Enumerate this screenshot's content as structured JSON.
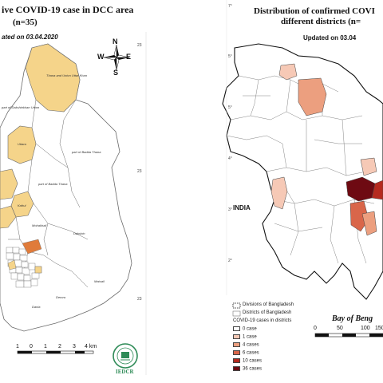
{
  "left_map": {
    "title": "ive COVID-19 case  in DCC area",
    "subtitle": "(n=35)",
    "updated": "ated on 03.04.2020",
    "compass": {
      "n": "N",
      "e": "E",
      "w": "W",
      "s": "S"
    },
    "coord_labels": [
      "23",
      "23",
      "23"
    ],
    "area_labels": [
      "Thana and Union Uttar Khan",
      "part of Dakshinkhan Union",
      "Uttara",
      "part of Badda Thana",
      "part of Badda Thana",
      "Dakshin",
      "Kafrul",
      "Mohakhali",
      "Demra",
      "Matuail",
      "Dania"
    ],
    "scale": {
      "ticks": [
        "1",
        "0",
        "1",
        "2",
        "3",
        "4 km"
      ]
    },
    "logo_text": "IEDCR",
    "colors": {
      "case_fill": "#f5d48a",
      "hotspot": "#e07b3a",
      "boundary": "#6b6b6b"
    }
  },
  "right_map": {
    "title_line1": "Distribution of confirmed COVI",
    "title_line2": "different districts (n=",
    "updated": "Updated on 03.04",
    "country_label": "INDIA",
    "sea_label": "Bay of Beng",
    "coord_labels": [
      "7°",
      "5°",
      "5°",
      "4°",
      "3°",
      "2°"
    ],
    "scale": {
      "ticks": [
        "0",
        "50",
        "100",
        "150"
      ]
    },
    "legend": {
      "divisions": "Divisions of Bangladesh",
      "districts": "Districts of Bangladesh",
      "heading": "COVID-19 cases in districts",
      "items": [
        {
          "label": "0 case",
          "color": "#ffffff"
        },
        {
          "label": "1 case",
          "color": "#f6c9b6"
        },
        {
          "label": "4 cases",
          "color": "#ec9f7f"
        },
        {
          "label": "6 cases",
          "color": "#d9664a"
        },
        {
          "label": "10 cases",
          "color": "#b52a1f"
        },
        {
          "label": "36 cases",
          "color": "#6e0a12"
        }
      ]
    }
  }
}
